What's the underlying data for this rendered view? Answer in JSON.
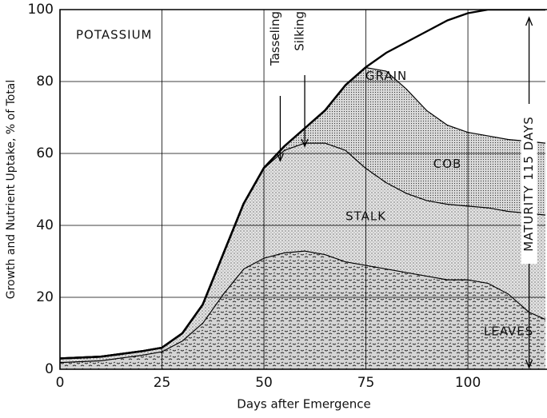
{
  "chart_data": {
    "type": "stacked_area",
    "title": "POTASSIUM",
    "x_label": "Days after Emergence",
    "y_label": "Growth and Nutrient Uptake, % of Total",
    "x": [
      0,
      10,
      20,
      25,
      30,
      35,
      40,
      45,
      50,
      55,
      60,
      65,
      70,
      75,
      80,
      85,
      90,
      95,
      100,
      105,
      110,
      115,
      119
    ],
    "series": [
      {
        "name": "LEAVES",
        "color": "#d4d4d4",
        "values": [
          2,
          2.5,
          4,
          5,
          8,
          13,
          21,
          28,
          31,
          32.5,
          33,
          32,
          30,
          29,
          28,
          27,
          26,
          25,
          25,
          24,
          21,
          16,
          14
        ]
      },
      {
        "name": "STALK",
        "color": "#e4e4e4",
        "values": [
          1,
          1,
          1,
          1,
          2,
          5,
          11,
          18,
          25,
          28.5,
          30,
          31,
          31,
          27,
          24,
          22,
          21,
          21,
          20.5,
          21,
          23,
          27.5,
          29
        ]
      },
      {
        "name": "COB",
        "color": "#dadada",
        "values": [
          0,
          0,
          0,
          0,
          0,
          0,
          0,
          0,
          0,
          1,
          4,
          9,
          18,
          28,
          31,
          29,
          25,
          22,
          20.5,
          20,
          20,
          20,
          20
        ]
      },
      {
        "name": "GRAIN",
        "color": "#ffffff",
        "values": [
          0,
          0,
          0,
          0,
          0,
          0,
          0,
          0,
          0,
          0,
          0,
          0,
          0,
          0,
          5,
          13,
          22,
          29,
          33,
          35,
          36,
          36.5,
          37
        ]
      }
    ],
    "annotations": [
      {
        "text": "Tasseling",
        "x": 54
      },
      {
        "text": "Silking",
        "x": 60
      },
      {
        "text": "MATURITY 115 DAYS",
        "x": 115
      }
    ],
    "xlim": [
      0,
      119
    ],
    "ylim": [
      0,
      100
    ],
    "xticks": [
      0,
      25,
      50,
      75,
      100
    ],
    "yticks": [
      0,
      20,
      40,
      60,
      80,
      100
    ],
    "grid": true
  }
}
